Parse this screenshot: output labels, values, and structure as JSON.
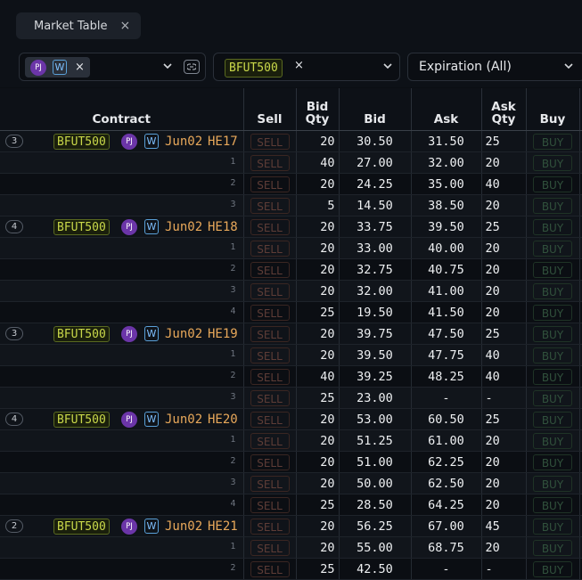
{
  "tab": {
    "title": "Market Table",
    "close": "×"
  },
  "filters": {
    "user_badge": "PJ",
    "w_badge": "W",
    "remove": "×",
    "product": "BFUT500",
    "expiration": "Expiration (All)"
  },
  "columns": [
    "Contract",
    "Sell",
    "Bid\nQty",
    "Bid",
    "Ask",
    "Ask\nQty",
    "Buy"
  ],
  "sell_label": "SELL",
  "buy_label": "BUY",
  "contract_common": {
    "product": "BFUT500",
    "user": "PJ",
    "w": "W",
    "month": "Jun02"
  },
  "groups": [
    {
      "symbol": "HE17",
      "levels": "3",
      "rows": [
        {
          "bid_qty": "20",
          "bid": "30.50",
          "ask": "31.50",
          "ask_qty": "25"
        },
        {
          "bid_qty": "40",
          "bid": "27.00",
          "ask": "32.00",
          "ask_qty": "20"
        },
        {
          "bid_qty": "20",
          "bid": "24.25",
          "ask": "35.00",
          "ask_qty": "40"
        },
        {
          "bid_qty": "5",
          "bid": "14.50",
          "ask": "38.50",
          "ask_qty": "20"
        }
      ]
    },
    {
      "symbol": "HE18",
      "levels": "4",
      "rows": [
        {
          "bid_qty": "20",
          "bid": "33.75",
          "ask": "39.50",
          "ask_qty": "25"
        },
        {
          "bid_qty": "20",
          "bid": "33.00",
          "ask": "40.00",
          "ask_qty": "20"
        },
        {
          "bid_qty": "20",
          "bid": "32.75",
          "ask": "40.75",
          "ask_qty": "20"
        },
        {
          "bid_qty": "20",
          "bid": "32.00",
          "ask": "41.00",
          "ask_qty": "20"
        },
        {
          "bid_qty": "25",
          "bid": "19.50",
          "ask": "41.50",
          "ask_qty": "20"
        }
      ]
    },
    {
      "symbol": "HE19",
      "levels": "3",
      "rows": [
        {
          "bid_qty": "20",
          "bid": "39.75",
          "ask": "47.50",
          "ask_qty": "25"
        },
        {
          "bid_qty": "20",
          "bid": "39.50",
          "ask": "47.75",
          "ask_qty": "40"
        },
        {
          "bid_qty": "40",
          "bid": "39.25",
          "ask": "48.25",
          "ask_qty": "40"
        },
        {
          "bid_qty": "25",
          "bid": "23.00",
          "ask": "-",
          "ask_qty": "-"
        }
      ]
    },
    {
      "symbol": "HE20",
      "levels": "4",
      "rows": [
        {
          "bid_qty": "20",
          "bid": "53.00",
          "ask": "60.50",
          "ask_qty": "25"
        },
        {
          "bid_qty": "20",
          "bid": "51.25",
          "ask": "61.00",
          "ask_qty": "20"
        },
        {
          "bid_qty": "20",
          "bid": "51.00",
          "ask": "62.25",
          "ask_qty": "20"
        },
        {
          "bid_qty": "20",
          "bid": "50.00",
          "ask": "62.50",
          "ask_qty": "20"
        },
        {
          "bid_qty": "25",
          "bid": "28.50",
          "ask": "64.25",
          "ask_qty": "20"
        }
      ]
    },
    {
      "symbol": "HE21",
      "levels": "2",
      "rows": [
        {
          "bid_qty": "20",
          "bid": "56.25",
          "ask": "67.00",
          "ask_qty": "45"
        },
        {
          "bid_qty": "20",
          "bid": "55.00",
          "ask": "68.75",
          "ask_qty": "20"
        },
        {
          "bid_qty": "25",
          "bid": "42.50",
          "ask": "-",
          "ask_qty": "-"
        }
      ]
    }
  ]
}
